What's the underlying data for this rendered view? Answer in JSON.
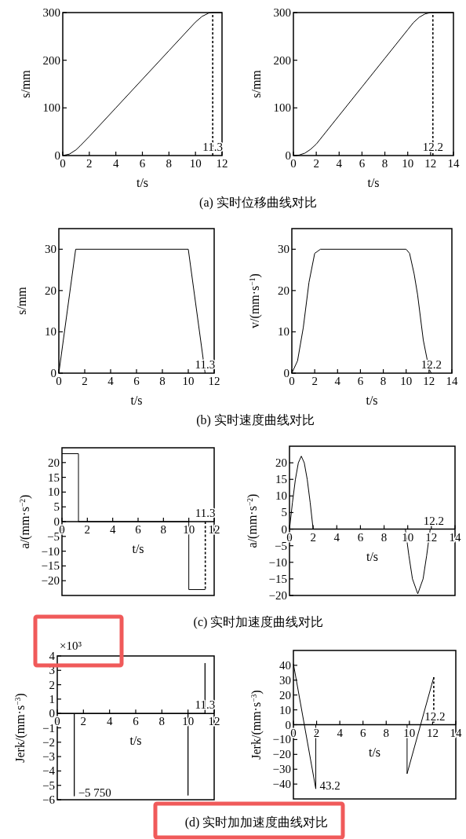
{
  "chart_data": [
    {
      "type": "line",
      "xlim": [
        0,
        12
      ],
      "ylim": [
        0,
        300
      ],
      "xticks": [
        0,
        2,
        4,
        6,
        8,
        10,
        12
      ],
      "yticks": [
        0,
        100,
        200,
        300
      ],
      "xlabel": "t/s",
      "ylabel": "s/mm",
      "series": [
        {
          "color": "#000000",
          "x": [
            0,
            0.5,
            1,
            1.3,
            2,
            4,
            6,
            8,
            10,
            10.5,
            11,
            11.3,
            12
          ],
          "values": [
            0,
            3,
            12,
            20,
            40,
            100,
            160,
            220,
            280,
            292,
            299,
            300,
            300
          ]
        },
        {
          "color": "#000000",
          "line_style": "dashed",
          "x": [
            11.3,
            11.3
          ],
          "values": [
            0,
            300
          ]
        }
      ],
      "title": "(a) 实时位移曲线对比",
      "annotations": [
        {
          "text": "11.3",
          "x": 11.3,
          "y": 0
        }
      ]
    },
    {
      "type": "line",
      "xlim": [
        0,
        14
      ],
      "ylim": [
        0,
        300
      ],
      "xticks": [
        0,
        2,
        4,
        6,
        8,
        10,
        12,
        14
      ],
      "yticks": [
        0,
        100,
        200,
        300
      ],
      "xlabel": "t/s",
      "ylabel": "s/mm",
      "series": [
        {
          "color": "#000000",
          "x": [
            0,
            0.5,
            1,
            1.5,
            2,
            4,
            6,
            8,
            10,
            10.5,
            11,
            11.5,
            12,
            14
          ],
          "values": [
            0,
            1,
            5,
            13,
            24,
            84,
            144,
            204,
            264,
            279,
            290,
            297,
            300,
            300
          ]
        },
        {
          "color": "#000000",
          "line_style": "dashed",
          "x": [
            12.2,
            12.2
          ],
          "values": [
            0,
            300
          ]
        }
      ],
      "annotations": [
        {
          "text": "12.2",
          "x": 12.2,
          "y": 0
        }
      ]
    },
    {
      "type": "line",
      "xlim": [
        0,
        12
      ],
      "ylim": [
        0,
        35
      ],
      "xticks": [
        0,
        2,
        4,
        6,
        8,
        10,
        12
      ],
      "yticks": [
        0,
        10,
        20,
        30
      ],
      "xlabel": "t/s",
      "ylabel": "s/mm",
      "series": [
        {
          "color": "#000000",
          "x": [
            0,
            1.3,
            10,
            11.3
          ],
          "values": [
            0,
            30,
            30,
            0
          ]
        }
      ],
      "title": "(b) 实时速度曲线对比",
      "annotations": [
        {
          "text": "11.3",
          "x": 11.3,
          "y": 0
        }
      ]
    },
    {
      "type": "line",
      "xlim": [
        0,
        14
      ],
      "ylim": [
        0,
        35
      ],
      "xticks": [
        0,
        2,
        4,
        6,
        8,
        10,
        12,
        14
      ],
      "yticks": [
        0,
        10,
        20,
        30
      ],
      "xlabel": "t/s",
      "ylabel": "v/(mm·s$^{−1}$)",
      "series": [
        {
          "color": "#000000",
          "x": [
            0,
            0.5,
            1,
            1.5,
            2,
            2.5,
            10,
            10.3,
            10.7,
            11,
            11.5,
            12,
            12.2
          ],
          "values": [
            0,
            3,
            11,
            22,
            29,
            30,
            30,
            29,
            24,
            19,
            8,
            1,
            0
          ]
        }
      ],
      "annotations": [
        {
          "text": "12.2",
          "x": 12.2,
          "y": 0
        }
      ]
    },
    {
      "type": "line",
      "xlim": [
        0,
        12
      ],
      "ylim": [
        -25,
        25
      ],
      "xticks": [
        0,
        2,
        4,
        6,
        8,
        10,
        12
      ],
      "yticks": [
        {
          "value": -20,
          "label": "−20"
        },
        {
          "value": -15,
          "label": "−15"
        },
        {
          "value": -10,
          "label": "−10"
        },
        {
          "value": -5,
          "label": "−5"
        },
        0,
        5,
        10,
        15,
        20
      ],
      "xlabel": "t/s",
      "ylabel": "a/(mm·s$^{−2}$)",
      "series": [
        {
          "color": "#000000",
          "x": [
            0,
            1.3,
            1.3,
            10,
            10,
            11.3
          ],
          "values": [
            23,
            23,
            0,
            0,
            -23,
            -23
          ]
        },
        {
          "color": "#000000",
          "line_style": "dashed",
          "x": [
            11.3,
            11.3
          ],
          "values": [
            0,
            -23
          ]
        }
      ],
      "title": "(c) 实时加速度曲线对比",
      "annotations": [
        {
          "text": "11.3",
          "x": 11.3,
          "y": 0
        }
      ]
    },
    {
      "type": "line",
      "xlim": [
        0,
        14
      ],
      "ylim": [
        -20,
        25
      ],
      "xticks": [
        0,
        2,
        4,
        6,
        8,
        10,
        12,
        14
      ],
      "yticks": [
        {
          "value": -20,
          "label": "−20"
        },
        {
          "value": -15,
          "label": "−15"
        },
        {
          "value": -10,
          "label": "−10"
        },
        {
          "value": -5,
          "label": "−5"
        },
        0,
        5,
        10,
        15,
        20
      ],
      "xlabel": "t/s",
      "ylabel": "a/(mm·s$^{−2}$)",
      "series": [
        {
          "color": "#000000",
          "x": [
            0,
            0.25,
            0.5,
            0.75,
            1,
            1.25,
            1.5,
            1.75,
            2,
            9.8,
            10.1,
            10.4,
            10.85,
            11.3,
            11.6,
            11.9
          ],
          "values": [
            0,
            8,
            15,
            20,
            22,
            20,
            15,
            8,
            0,
            0,
            -8,
            -15,
            -19.5,
            -15,
            -8,
            0
          ]
        }
      ],
      "annotations": [
        {
          "text": "12.2",
          "x": 12.2,
          "y": 0
        }
      ]
    },
    {
      "type": "line",
      "xlim": [
        0,
        12
      ],
      "ylim": [
        -6,
        4
      ],
      "xticks": [
        0,
        2,
        4,
        6,
        8,
        10,
        12
      ],
      "yticks": [
        {
          "value": -6,
          "label": "−6"
        },
        {
          "value": -5,
          "label": "−5"
        },
        {
          "value": -4,
          "label": "−4"
        },
        {
          "value": -3,
          "label": "−3"
        },
        {
          "value": -2,
          "label": "−2"
        },
        {
          "value": -1,
          "label": "−1"
        },
        0,
        1,
        2,
        3,
        4
      ],
      "xlabel": "t/s",
      "ylabel": "Jerk/(mm·s$^{−3}$)",
      "series": [
        {
          "color": "#000000",
          "x": [
            0,
            1.3,
            1.3,
            1.3,
            10,
            10,
            10,
            11.3,
            11.3,
            11.3
          ],
          "values": [
            0,
            0,
            -5.75,
            0,
            0,
            -5.7,
            0,
            0,
            3.5,
            0
          ]
        }
      ],
      "title": "(d) 实时加加速度曲线对比",
      "annotations": [
        "×10³",
        {
          "text": "−5 750",
          "x": 1.3,
          "y": -5.75
        },
        {
          "text": "11.3",
          "x": 11.3,
          "y": 0
        }
      ]
    },
    {
      "type": "line",
      "xlim": [
        0,
        14
      ],
      "ylim": [
        -50,
        50
      ],
      "xticks": [
        0,
        2,
        4,
        6,
        8,
        10,
        12,
        14
      ],
      "yticks": [
        {
          "value": -40,
          "label": "−40"
        },
        {
          "value": -30,
          "label": "−30"
        },
        {
          "value": -20,
          "label": "−20"
        },
        {
          "value": -10,
          "label": "−10"
        },
        0,
        10,
        20,
        30,
        40
      ],
      "xlabel": "t/s",
      "ylabel": "Jerk/(mm·s$^{−3}$)",
      "series": [
        {
          "color": "#000000",
          "x": [
            0,
            1.93,
            1.93,
            9.8,
            9.8,
            12.1
          ],
          "values": [
            41,
            -43.2,
            0,
            0,
            -33,
            32
          ]
        },
        {
          "color": "#000000",
          "line_style": "dashed",
          "x": [
            12.1,
            12.1
          ],
          "values": [
            32,
            0
          ]
        }
      ],
      "annotations": [
        {
          "text": "43.2",
          "x": 1.93,
          "y": -43.2
        },
        {
          "text": "12.2",
          "x": 12.2,
          "y": 0
        }
      ]
    }
  ]
}
